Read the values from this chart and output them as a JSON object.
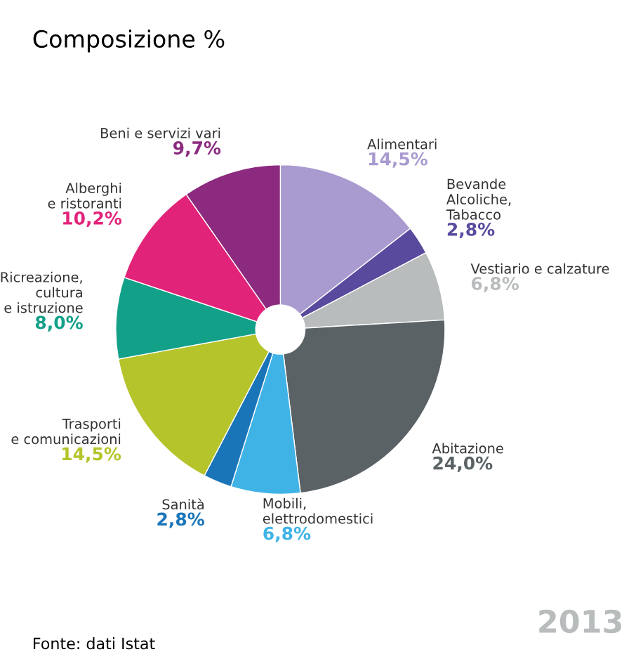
{
  "chart_data": {
    "type": "donut",
    "title": "Composizione %",
    "categories": [
      "Alimentari",
      "Bevande\nAlcoliche,\nTabacco",
      "Vestiario e calzature",
      "Abitazione",
      "Mobili,\nelettrodomestici",
      "Sanità",
      "Trasporti\ne comunicazioni",
      "Ricreazione,\ncultura\ne istruzione",
      "Alberghi\ne ristoranti",
      "Beni e servizi vari"
    ],
    "values": [
      14.5,
      2.8,
      6.8,
      24.0,
      6.8,
      2.8,
      14.5,
      8.0,
      10.2,
      9.7
    ],
    "value_labels": [
      "14,5%",
      "2,8%",
      "6,8%",
      "24,0%",
      "6,8%",
      "2,8%",
      "14,5%",
      "8,0%",
      "10,2%",
      "9,7%"
    ],
    "colors": [
      "#a99bd0",
      "#5a4a9e",
      "#b8bcbd",
      "#5a6266",
      "#3fb3e6",
      "#1a75b8",
      "#b5c42a",
      "#13a089",
      "#e2237a",
      "#8b2a7e"
    ],
    "annotations": [
      "2013",
      "Fonte: dati Istat"
    ]
  }
}
